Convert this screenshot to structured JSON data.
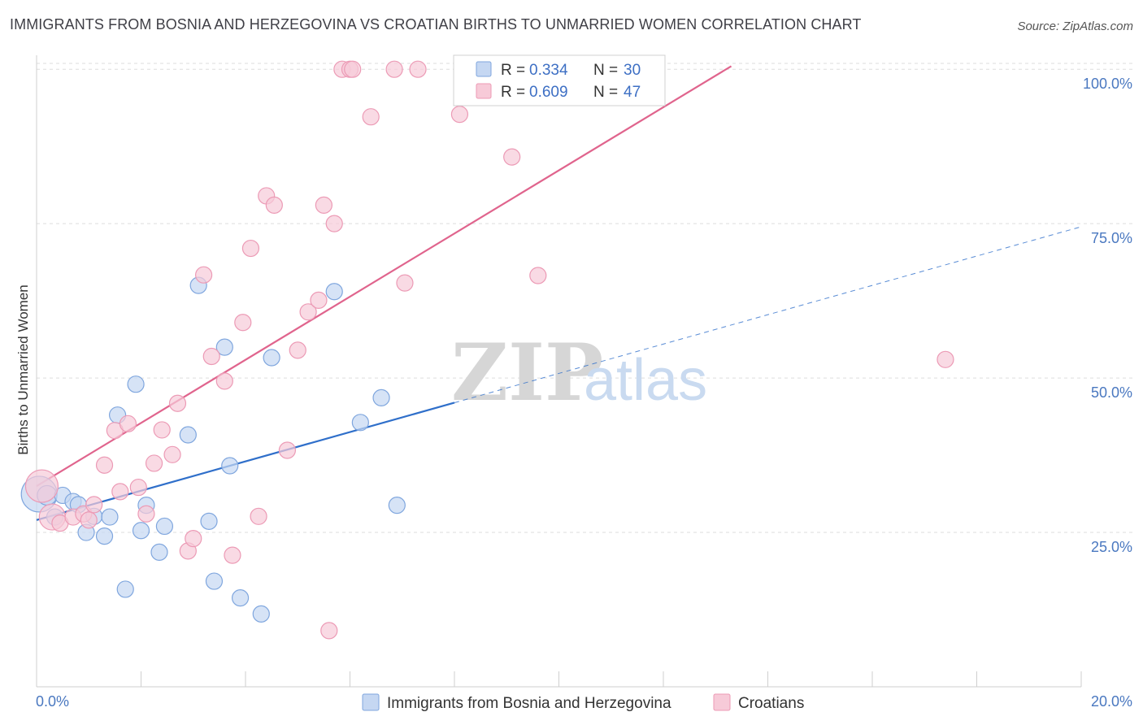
{
  "title": "IMMIGRANTS FROM BOSNIA AND HERZEGOVINA VS CROATIAN BIRTHS TO UNMARRIED WOMEN CORRELATION CHART",
  "source": "Source: ZipAtlas.com",
  "watermark": {
    "zip": "ZIP",
    "atlas": "atlas"
  },
  "colors": {
    "blue_fill": "#c5d7f2",
    "blue_stroke": "#7fa6de",
    "blue_line": "#2f6fca",
    "pink_fill": "#f7cad8",
    "pink_stroke": "#ec9ab5",
    "pink_line": "#e0648d",
    "tick_text": "#4a78c0",
    "grid": "#dedede"
  },
  "legend": {
    "series": [
      {
        "r_label": "R = ",
        "r_value": "0.334",
        "n_label": "N = ",
        "n_value": "30"
      },
      {
        "r_label": "R = ",
        "r_value": "0.609",
        "n_label": "N = ",
        "n_value": "47"
      }
    ]
  },
  "bottom_legend": [
    "Immigrants from Bosnia and Herzegovina",
    "Croatians"
  ],
  "chart_data": {
    "type": "scatter",
    "xlabel": "",
    "ylabel": "Births to Unmarried Women",
    "xlim": [
      0,
      20
    ],
    "ylim": [
      0,
      102
    ],
    "x_tick_labels": [
      "0.0%",
      "20.0%"
    ],
    "y_ticks": [
      25,
      50,
      75,
      100
    ],
    "y_tick_labels": [
      "25.0%",
      "50.0%",
      "75.0%",
      "100.0%"
    ],
    "grid": true,
    "legend_position": "top-center",
    "series": [
      {
        "name": "Immigrants from Bosnia and Herzegovina",
        "trend": {
          "x0": 0.0,
          "y0": 27.0,
          "x1": 8.0,
          "y1": 46.0,
          "dashed_to_x": 20.0,
          "dashed_to_y": 74.5
        },
        "points": [
          [
            0.05,
            31.2,
            22
          ],
          [
            0.2,
            31.0,
            12
          ],
          [
            0.35,
            27.5,
            10
          ],
          [
            0.5,
            31.0,
            10
          ],
          [
            0.7,
            30.0,
            10
          ],
          [
            0.8,
            29.5,
            10
          ],
          [
            0.95,
            25.0,
            10
          ],
          [
            1.1,
            27.6,
            10
          ],
          [
            1.3,
            24.4,
            10
          ],
          [
            1.4,
            27.5,
            10
          ],
          [
            1.55,
            44.0,
            10
          ],
          [
            1.7,
            15.8,
            10
          ],
          [
            1.9,
            49.0,
            10
          ],
          [
            2.0,
            25.3,
            10
          ],
          [
            2.1,
            29.4,
            10
          ],
          [
            2.35,
            21.8,
            10
          ],
          [
            2.45,
            26.0,
            10
          ],
          [
            2.9,
            40.8,
            10
          ],
          [
            3.1,
            65.0,
            10
          ],
          [
            3.3,
            26.8,
            10
          ],
          [
            3.4,
            17.1,
            10
          ],
          [
            3.6,
            55.0,
            10
          ],
          [
            3.7,
            35.8,
            10
          ],
          [
            3.9,
            14.4,
            10
          ],
          [
            4.3,
            11.8,
            10
          ],
          [
            4.5,
            53.3,
            10
          ],
          [
            5.7,
            64.0,
            10
          ],
          [
            6.2,
            42.8,
            10
          ],
          [
            6.6,
            46.8,
            10
          ],
          [
            6.9,
            29.4,
            10
          ]
        ]
      },
      {
        "name": "Croatians",
        "trend": {
          "x0": 0.0,
          "y0": 32.5,
          "x1": 13.3,
          "y1": 100.5
        },
        "points": [
          [
            0.1,
            32.5,
            20
          ],
          [
            0.3,
            27.5,
            16
          ],
          [
            0.45,
            26.5,
            10
          ],
          [
            0.7,
            27.5,
            10
          ],
          [
            0.9,
            28.0,
            10
          ],
          [
            1.0,
            27.0,
            10
          ],
          [
            1.1,
            29.5,
            10
          ],
          [
            1.3,
            35.9,
            10
          ],
          [
            1.5,
            41.5,
            10
          ],
          [
            1.6,
            31.6,
            10
          ],
          [
            1.75,
            42.6,
            10
          ],
          [
            1.95,
            32.3,
            10
          ],
          [
            2.1,
            28.0,
            10
          ],
          [
            2.25,
            36.2,
            10
          ],
          [
            2.4,
            41.6,
            10
          ],
          [
            2.6,
            37.6,
            10
          ],
          [
            2.7,
            45.9,
            10
          ],
          [
            2.9,
            22.0,
            10
          ],
          [
            3.0,
            24.0,
            10
          ],
          [
            3.2,
            66.7,
            10
          ],
          [
            3.35,
            53.5,
            10
          ],
          [
            3.6,
            49.5,
            10
          ],
          [
            3.75,
            21.3,
            10
          ],
          [
            3.95,
            59.0,
            10
          ],
          [
            4.1,
            71.0,
            10
          ],
          [
            4.25,
            27.6,
            10
          ],
          [
            4.4,
            79.5,
            10
          ],
          [
            4.55,
            78.0,
            10
          ],
          [
            4.8,
            38.3,
            10
          ],
          [
            5.0,
            54.5,
            10
          ],
          [
            5.2,
            60.7,
            10
          ],
          [
            5.4,
            62.6,
            10
          ],
          [
            5.5,
            78.0,
            10
          ],
          [
            5.6,
            9.1,
            10
          ],
          [
            5.7,
            75.0,
            10
          ],
          [
            5.85,
            100.0,
            10
          ],
          [
            6.0,
            100.0,
            10
          ],
          [
            6.05,
            100.0,
            10
          ],
          [
            6.4,
            92.3,
            10
          ],
          [
            6.85,
            100.0,
            10
          ],
          [
            7.05,
            65.4,
            10
          ],
          [
            7.3,
            100.0,
            10
          ],
          [
            8.1,
            92.7,
            10
          ],
          [
            8.7,
            100.0,
            10
          ],
          [
            9.1,
            85.8,
            10
          ],
          [
            9.6,
            66.6,
            10
          ],
          [
            17.4,
            53.0,
            10
          ]
        ]
      }
    ]
  }
}
